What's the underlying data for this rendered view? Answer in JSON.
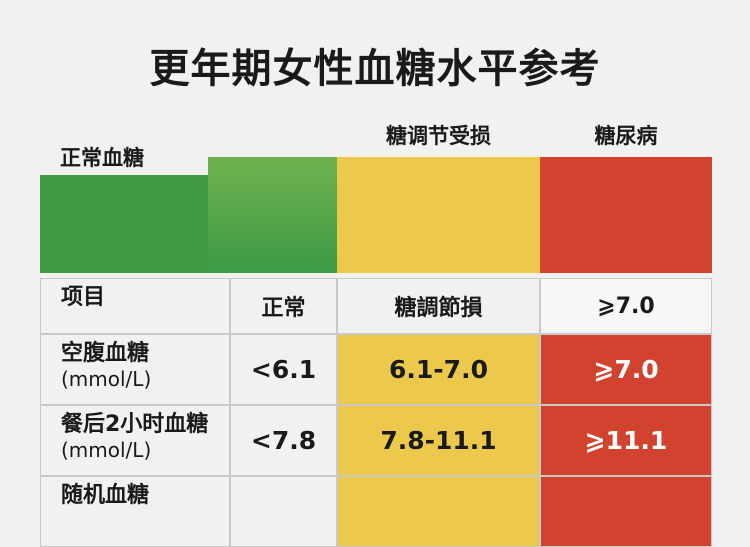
{
  "title": "更年期女性血糖水平参考",
  "band_labels": [
    "正常血糖",
    "糖调节受损",
    "糖尿病"
  ],
  "table": {
    "header": [
      "项目",
      "正常",
      "糖調節損",
      "⩾7.0"
    ],
    "rows": [
      [
        [
          "空腹血糖",
          "(mmol/L)"
        ],
        "<6.1",
        "6.1-7.0",
        "⩾7.0"
      ],
      [
        [
          "餐后2小时血糖",
          "(mmol/L)"
        ],
        "<7.8",
        "7.8-11.1",
        "⩾11.1"
      ],
      [
        [
          "随机血糖"
        ],
        "",
        "",
        ""
      ]
    ]
  }
}
